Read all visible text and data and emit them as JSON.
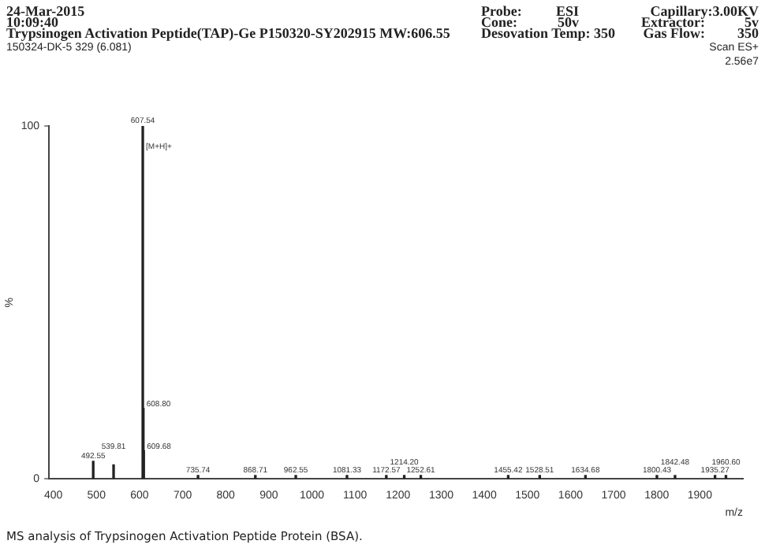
{
  "chart_data": {
    "type": "bar",
    "title": "Trypsinogen Activation Peptide(TAP)-Ge  P150320-SY202915  MW:606.55",
    "subtitle": "150324-DK-5 329 (6.081)",
    "xlabel": "m/z",
    "ylabel": "%",
    "x": [
      492.55,
      539.81,
      607.54,
      608.8,
      609.68,
      735.74,
      868.71,
      962.55,
      1081.33,
      1172.57,
      1214.2,
      1252.61,
      1455.42,
      1528.51,
      1634.68,
      1800.43,
      1842.48,
      1935.27,
      1960.6
    ],
    "values": [
      5,
      4,
      100,
      20,
      8,
      1,
      1,
      1,
      1,
      1,
      1,
      1,
      1,
      1,
      1,
      1,
      1,
      1,
      1
    ],
    "color": "#222222",
    "xlim": [
      390,
      2000
    ],
    "xticks": [
      400,
      500,
      600,
      700,
      800,
      900,
      1000,
      1100,
      1200,
      1300,
      1400,
      1500,
      1600,
      1700,
      1800,
      1900
    ],
    "ylim": [
      0,
      100
    ],
    "yticks": [
      0,
      100
    ],
    "grid": false,
    "legend": false,
    "annotations": [
      "24-Mar-2015",
      "10:09:40",
      "Probe:",
      "ESI",
      "Capillary:3.00KV",
      "Cone:",
      "50v",
      "Extractor:",
      "5v",
      "Desovation  Temp: 350",
      "Gas Flow:",
      "350",
      "Scan ES+",
      "2.56e7",
      {
        "text": "607.54",
        "x": 607.54,
        "y": 100
      },
      {
        "text": "[M+H]+",
        "x": 607.54,
        "y": 93
      },
      {
        "text": "608.80",
        "x": 608.8,
        "y": 20
      },
      {
        "text": "609.68",
        "x": 609.68,
        "y": 8
      },
      {
        "text": "492.55",
        "x": 492.55,
        "y": 5
      },
      {
        "text": "539.81",
        "x": 539.81,
        "y": 4
      },
      {
        "text": "735.74",
        "x": 735.74,
        "y": 1
      },
      {
        "text": "868.71",
        "x": 868.71,
        "y": 1
      },
      {
        "text": "962.55",
        "x": 962.55,
        "y": 1
      },
      {
        "text": "1081.33",
        "x": 1081.33,
        "y": 1
      },
      {
        "text": "1172.57",
        "x": 1172.57,
        "y": 1
      },
      {
        "text": "1214.20",
        "x": 1214.2,
        "y": 1
      },
      {
        "text": "1252.61",
        "x": 1252.61,
        "y": 1
      },
      {
        "text": "1455.42",
        "x": 1455.42,
        "y": 1
      },
      {
        "text": "1528.51",
        "x": 1528.51,
        "y": 1
      },
      {
        "text": "1634.68",
        "x": 1634.68,
        "y": 1
      },
      {
        "text": "1800.43",
        "x": 1800.43,
        "y": 1
      },
      {
        "text": "1842.48",
        "x": 1842.48,
        "y": 1
      },
      {
        "text": "1935.27",
        "x": 1935.27,
        "y": 1
      },
      {
        "text": "1960.60",
        "x": 1960.6,
        "y": 1
      },
      "MS analysis of Trypsinogen Activation Peptide Protein (BSA)."
    ]
  }
}
